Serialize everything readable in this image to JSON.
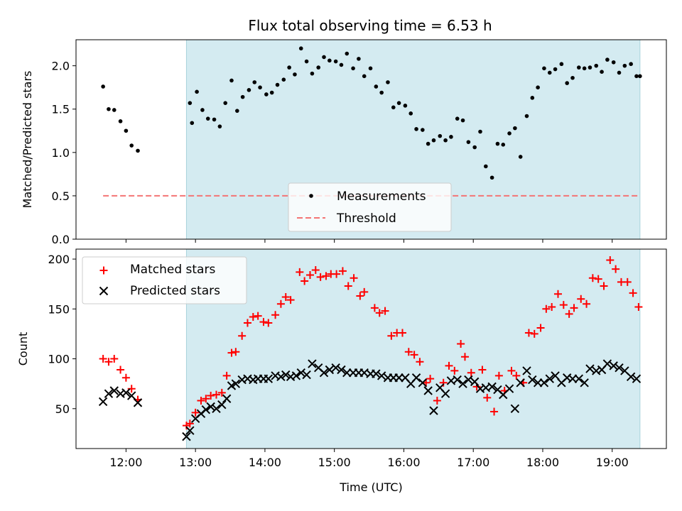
{
  "chart_data": {
    "title": "Flux total observing time = 6.53 h",
    "xlabel": "Time (UTC)",
    "xlim_hours": [
      11.28,
      19.78
    ],
    "x_ticks": [
      {
        "value": 12,
        "label": "12:00"
      },
      {
        "value": 13,
        "label": "13:00"
      },
      {
        "value": 14,
        "label": "14:00"
      },
      {
        "value": 15,
        "label": "15:00"
      },
      {
        "value": 16,
        "label": "16:00"
      },
      {
        "value": 17,
        "label": "17:00"
      },
      {
        "value": 18,
        "label": "18:00"
      },
      {
        "value": 19,
        "label": "19:00"
      }
    ],
    "shaded_span_hours": [
      12.87,
      19.4
    ],
    "colors": {
      "shade": "#d4ebf1",
      "measurements": "#000000",
      "threshold": "#f47474",
      "matched": "#ff0000",
      "predicted": "#000000"
    },
    "panels": [
      {
        "type": "scatter",
        "ylabel": "Matched/Predicted stars",
        "ylim": [
          0,
          2.3
        ],
        "y_ticks": [
          {
            "value": 0,
            "label": "0.0"
          },
          {
            "value": 0.5,
            "label": "0.5"
          },
          {
            "value": 1.0,
            "label": "1.0"
          },
          {
            "value": 1.5,
            "label": "1.5"
          },
          {
            "value": 2.0,
            "label": "2.0"
          }
        ],
        "legend_position": "bottom-center",
        "series": [
          {
            "name": "Measurements",
            "marker": "dot",
            "x": [
              11.67,
              11.75,
              11.83,
              11.92,
              12.0,
              12.08,
              12.17,
              12.92,
              12.95,
              13.02,
              13.1,
              13.18,
              13.27,
              13.35,
              13.43,
              13.52,
              13.6,
              13.68,
              13.77,
              13.85,
              13.93,
              14.02,
              14.1,
              14.18,
              14.27,
              14.35,
              14.43,
              14.52,
              14.6,
              14.68,
              14.77,
              14.85,
              14.93,
              15.02,
              15.1,
              15.18,
              15.27,
              15.35,
              15.43,
              15.52,
              15.6,
              15.68,
              15.77,
              15.85,
              15.93,
              16.02,
              16.1,
              16.18,
              16.27,
              16.35,
              16.43,
              16.52,
              16.6,
              16.68,
              16.77,
              16.85,
              16.93,
              17.02,
              17.1,
              17.18,
              17.27,
              17.35,
              17.43,
              17.52,
              17.6,
              17.68,
              17.77,
              17.85,
              17.93,
              18.02,
              18.1,
              18.18,
              18.27,
              18.35,
              18.43,
              18.52,
              18.6,
              18.68,
              18.77,
              18.85,
              18.93,
              19.02,
              19.1,
              19.18,
              19.27,
              19.35,
              19.4
            ],
            "y": [
              1.76,
              1.5,
              1.49,
              1.36,
              1.25,
              1.08,
              1.02,
              1.57,
              1.34,
              1.7,
              1.49,
              1.39,
              1.38,
              1.3,
              1.57,
              1.83,
              1.48,
              1.64,
              1.72,
              1.81,
              1.75,
              1.67,
              1.69,
              1.78,
              1.84,
              1.98,
              1.9,
              2.2,
              2.05,
              1.91,
              1.98,
              2.1,
              2.06,
              2.05,
              2.01,
              2.14,
              1.97,
              2.08,
              1.88,
              1.97,
              1.76,
              1.69,
              1.81,
              1.52,
              1.57,
              1.54,
              1.45,
              1.27,
              1.26,
              1.1,
              1.14,
              1.19,
              1.14,
              1.18,
              1.39,
              1.37,
              1.12,
              1.06,
              1.24,
              0.84,
              0.71,
              1.1,
              1.09,
              1.22,
              1.28,
              0.95,
              1.42,
              1.63,
              1.75,
              1.97,
              1.92,
              1.96,
              2.02,
              1.8,
              1.86,
              1.98,
              1.97,
              1.98,
              2.0,
              1.93,
              2.07,
              2.04,
              1.92,
              2.0,
              2.02,
              1.88,
              1.88
            ]
          },
          {
            "name": "Threshold",
            "marker": "dashed-line",
            "x": [
              11.67,
              19.4
            ],
            "y": [
              0.5,
              0.5
            ]
          }
        ]
      },
      {
        "type": "scatter",
        "ylabel": "Count",
        "ylim": [
          10,
          210
        ],
        "y_ticks": [
          {
            "value": 50,
            "label": "50"
          },
          {
            "value": 100,
            "label": "100"
          },
          {
            "value": 150,
            "label": "150"
          },
          {
            "value": 200,
            "label": "200"
          }
        ],
        "legend_position": "top-left",
        "series": [
          {
            "name": "Matched stars",
            "marker": "plus",
            "x": [
              11.67,
              11.75,
              11.83,
              11.92,
              12.0,
              12.08,
              12.17,
              12.87,
              12.92,
              13.0,
              13.08,
              13.15,
              13.22,
              13.3,
              13.38,
              13.45,
              13.52,
              13.58,
              13.67,
              13.75,
              13.83,
              13.9,
              13.98,
              14.05,
              14.15,
              14.23,
              14.3,
              14.37,
              14.5,
              14.57,
              14.65,
              14.73,
              14.8,
              14.88,
              14.95,
              15.03,
              15.12,
              15.2,
              15.28,
              15.37,
              15.43,
              15.58,
              15.65,
              15.73,
              15.82,
              15.9,
              15.98,
              16.07,
              16.15,
              16.23,
              16.32,
              16.38,
              16.48,
              16.57,
              16.65,
              16.73,
              16.82,
              16.88,
              16.97,
              17.05,
              17.13,
              17.2,
              17.3,
              17.37,
              17.45,
              17.55,
              17.62,
              17.72,
              17.8,
              17.88,
              17.97,
              18.05,
              18.13,
              18.22,
              18.3,
              18.38,
              18.45,
              18.55,
              18.63,
              18.72,
              18.8,
              18.88,
              18.97,
              19.05,
              19.13,
              19.22,
              19.3,
              19.38
            ],
            "y": [
              100,
              97,
              100,
              89,
              81,
              70,
              59,
              33,
              35,
              46,
              58,
              60,
              63,
              64,
              66,
              83,
              106,
              107,
              123,
              136,
              142,
              143,
              137,
              136,
              144,
              155,
              162,
              159,
              187,
              178,
              184,
              189,
              182,
              183,
              185,
              185,
              188,
              173,
              181,
              163,
              167,
              151,
              146,
              148,
              123,
              126,
              126,
              107,
              104,
              97,
              76,
              80,
              58,
              76,
              93,
              88,
              115,
              102,
              86,
              72,
              89,
              61,
              47,
              83,
              68,
              88,
              83,
              76,
              126,
              125,
              131,
              150,
              152,
              165,
              154,
              145,
              151,
              160,
              155,
              181,
              180,
              173,
              199,
              190,
              177,
              177,
              166,
              152
            ]
          },
          {
            "name": "Predicted stars",
            "marker": "x",
            "x": [
              11.67,
              11.75,
              11.83,
              11.92,
              12.0,
              12.08,
              12.17,
              12.87,
              12.92,
              13.0,
              13.08,
              13.15,
              13.22,
              13.3,
              13.38,
              13.45,
              13.52,
              13.58,
              13.67,
              13.75,
              13.83,
              13.9,
              13.98,
              14.05,
              14.15,
              14.23,
              14.3,
              14.37,
              14.45,
              14.52,
              14.6,
              14.68,
              14.77,
              14.85,
              14.93,
              15.02,
              15.1,
              15.18,
              15.27,
              15.35,
              15.43,
              15.52,
              15.6,
              15.68,
              15.77,
              15.85,
              15.93,
              16.02,
              16.1,
              16.18,
              16.27,
              16.35,
              16.43,
              16.52,
              16.6,
              16.68,
              16.77,
              16.85,
              16.93,
              17.02,
              17.1,
              17.18,
              17.27,
              17.35,
              17.43,
              17.52,
              17.6,
              17.68,
              17.77,
              17.85,
              17.93,
              18.02,
              18.1,
              18.18,
              18.27,
              18.35,
              18.43,
              18.52,
              18.6,
              18.68,
              18.77,
              18.85,
              18.93,
              19.02,
              19.1,
              19.18,
              19.27,
              19.35
            ],
            "y": [
              57,
              65,
              68,
              65,
              66,
              63,
              56,
              22,
              28,
              40,
              45,
              49,
              52,
              50,
              54,
              60,
              73,
              75,
              79,
              80,
              79,
              80,
              80,
              80,
              83,
              82,
              84,
              82,
              83,
              86,
              84,
              95,
              91,
              86,
              89,
              91,
              89,
              86,
              86,
              86,
              86,
              85,
              85,
              83,
              81,
              81,
              81,
              81,
              75,
              81,
              76,
              68,
              48,
              71,
              65,
              78,
              79,
              75,
              79,
              77,
              70,
              71,
              72,
              69,
              64,
              70,
              50,
              76,
              88,
              79,
              76,
              76,
              80,
              83,
              76,
              81,
              80,
              80,
              76,
              90,
              88,
              89,
              95,
              93,
              91,
              88,
              82,
              80
            ]
          }
        ]
      }
    ]
  }
}
